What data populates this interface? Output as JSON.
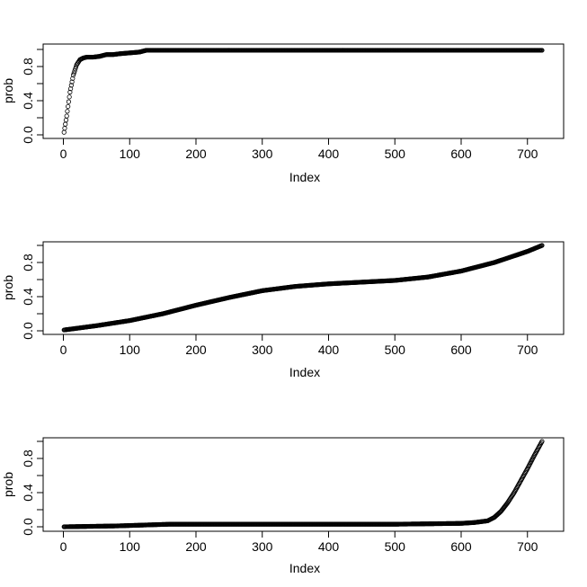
{
  "chart_data": [
    {
      "type": "scatter",
      "xlabel": "Index",
      "ylabel": "prob",
      "xlim": [
        0,
        740
      ],
      "ylim": [
        0,
        1
      ],
      "x_ticks": [
        0,
        100,
        200,
        300,
        400,
        500,
        600,
        700
      ],
      "y_ticks": [
        0.0,
        0.2,
        0.4,
        0.6,
        0.8,
        1.0
      ],
      "y_tick_labels": [
        "0.0",
        "",
        "0.4",
        "",
        "0.8",
        ""
      ],
      "n_points": 722,
      "curve_x": [
        1,
        5,
        10,
        15,
        20,
        25,
        30,
        35,
        45,
        55,
        65,
        75,
        85,
        100,
        115,
        125,
        200,
        400,
        600,
        722
      ],
      "curve_y": [
        0.03,
        0.22,
        0.5,
        0.7,
        0.82,
        0.88,
        0.9,
        0.91,
        0.91,
        0.92,
        0.94,
        0.94,
        0.95,
        0.96,
        0.97,
        0.99,
        0.99,
        0.99,
        0.99,
        0.99
      ],
      "grid": false
    },
    {
      "type": "scatter",
      "xlabel": "Index",
      "ylabel": "prob",
      "xlim": [
        0,
        740
      ],
      "ylim": [
        0,
        1
      ],
      "x_ticks": [
        0,
        100,
        200,
        300,
        400,
        500,
        600,
        700
      ],
      "y_ticks": [
        0.0,
        0.2,
        0.4,
        0.6,
        0.8,
        1.0
      ],
      "y_tick_labels": [
        "0.0",
        "",
        "0.4",
        "",
        "0.8",
        ""
      ],
      "n_points": 722,
      "curve_x": [
        1,
        50,
        100,
        150,
        200,
        250,
        300,
        350,
        400,
        450,
        500,
        550,
        600,
        650,
        700,
        722
      ],
      "curve_y": [
        0.01,
        0.06,
        0.12,
        0.2,
        0.3,
        0.39,
        0.47,
        0.52,
        0.55,
        0.57,
        0.59,
        0.63,
        0.7,
        0.8,
        0.93,
        1.0
      ],
      "grid": false
    },
    {
      "type": "scatter",
      "xlabel": "Index",
      "ylabel": "prob",
      "xlim": [
        0,
        740
      ],
      "ylim": [
        0,
        1
      ],
      "x_ticks": [
        0,
        100,
        200,
        300,
        400,
        500,
        600,
        700
      ],
      "y_ticks": [
        0.0,
        0.2,
        0.4,
        0.6,
        0.8,
        1.0
      ],
      "y_tick_labels": [
        "0.0",
        "",
        "0.4",
        "",
        "0.8",
        ""
      ],
      "n_points": 722,
      "curve_x": [
        1,
        80,
        160,
        300,
        500,
        600,
        620,
        640,
        650,
        660,
        670,
        680,
        690,
        700,
        710,
        722
      ],
      "curve_y": [
        0.0,
        0.01,
        0.03,
        0.03,
        0.03,
        0.04,
        0.05,
        0.07,
        0.11,
        0.18,
        0.28,
        0.4,
        0.54,
        0.68,
        0.83,
        1.0
      ],
      "grid": false
    }
  ]
}
